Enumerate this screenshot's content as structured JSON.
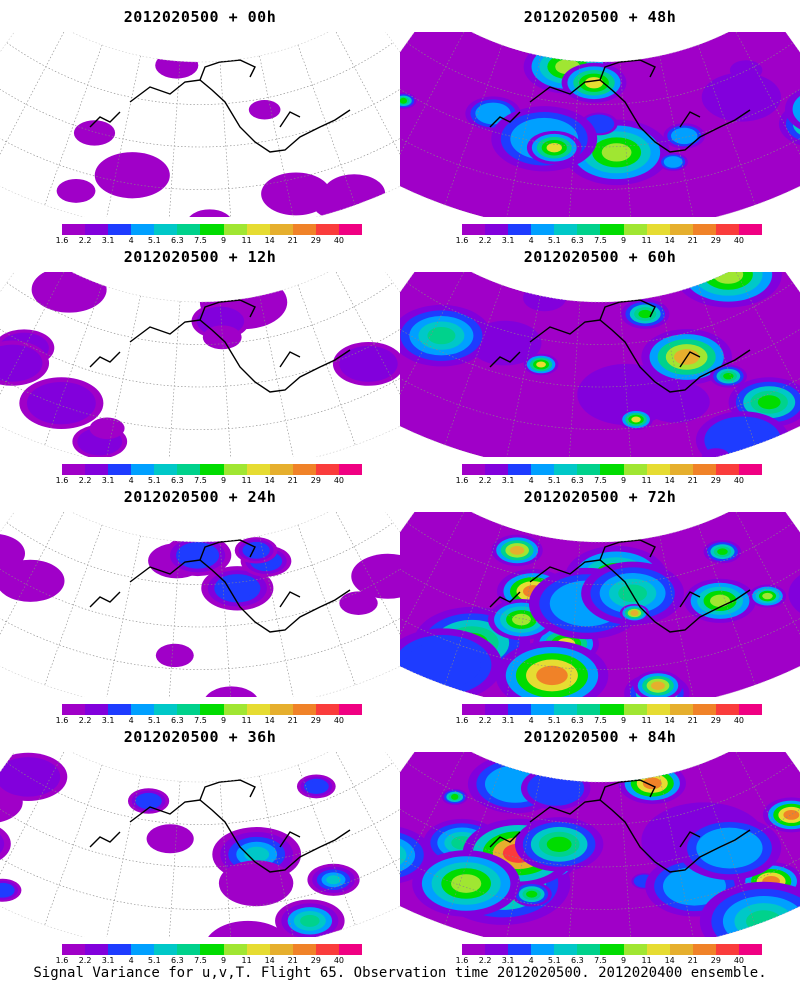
{
  "caption": "Signal Variance for u,v,T. Flight 65. Observation time 2012020500. 2012020400 ensemble.",
  "colorbar": {
    "labels": [
      "1.6",
      "2.2",
      "3.1",
      "4",
      "5.1",
      "6.3",
      "7.5",
      "9",
      "11",
      "14",
      "21",
      "29",
      "40"
    ],
    "colors": [
      "#a000c8",
      "#8200dc",
      "#1e3cff",
      "#00a0ff",
      "#00c8c8",
      "#00d28c",
      "#00dc00",
      "#a0e632",
      "#e6dc32",
      "#e6af2d",
      "#f08228",
      "#fa3c3c",
      "#f00082"
    ]
  },
  "panels": [
    {
      "title": "2012020500 + 00h",
      "lead": 0,
      "intensity": 0.2
    },
    {
      "title": "2012020500 + 48h",
      "lead": 48,
      "intensity": 0.6
    },
    {
      "title": "2012020500 + 12h",
      "lead": 12,
      "intensity": 0.3
    },
    {
      "title": "2012020500 + 60h",
      "lead": 60,
      "intensity": 0.7
    },
    {
      "title": "2012020500 + 24h",
      "lead": 24,
      "intensity": 0.4
    },
    {
      "title": "2012020500 + 72h",
      "lead": 72,
      "intensity": 0.8
    },
    {
      "title": "2012020500 + 36h",
      "lead": 36,
      "intensity": 0.5
    },
    {
      "title": "2012020500 + 84h",
      "lead": 84,
      "intensity": 0.9
    }
  ]
}
